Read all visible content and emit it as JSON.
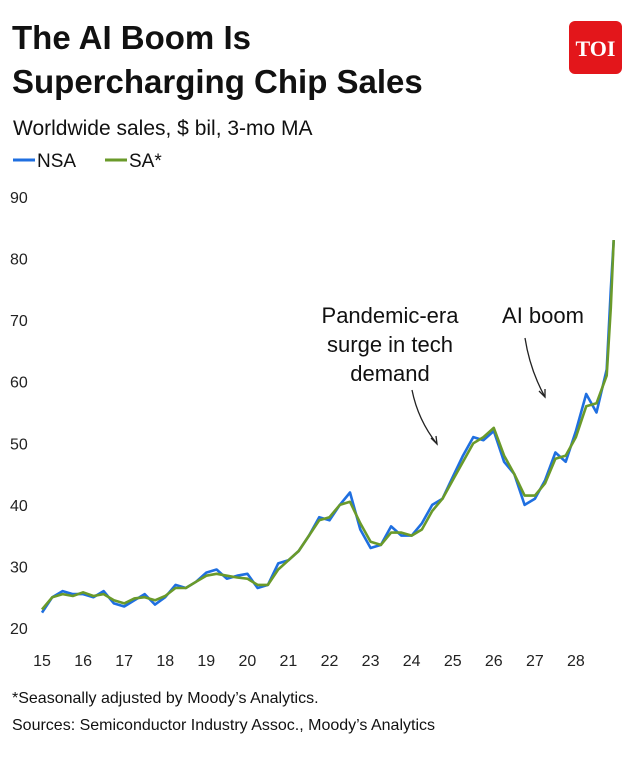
{
  "chart_data": {
    "type": "line",
    "logo": "TOI",
    "title": [
      "The AI Boom Is",
      "Supercharging Chip Sales"
    ],
    "subtitle": "Worldwide sales, $ bil, 3-mo MA",
    "x": [
      15,
      15.25,
      15.5,
      15.75,
      16,
      16.25,
      16.5,
      16.75,
      17,
      17.25,
      17.5,
      17.75,
      18,
      18.25,
      18.5,
      18.75,
      19,
      19.25,
      19.5,
      19.75,
      20,
      20.25,
      20.5,
      20.75,
      21,
      21.25,
      21.5,
      21.75,
      22,
      22.25,
      22.5,
      22.75,
      23,
      23.25,
      23.5,
      23.75,
      24,
      24.25,
      24.5,
      24.75,
      25,
      25.25,
      25.5,
      25.75,
      26,
      26.25,
      26.5,
      26.75,
      27,
      27.25,
      27.5,
      27.75,
      28,
      28.25,
      28.5,
      28.75,
      28.85,
      28.92
    ],
    "series": [
      {
        "name": "NSA",
        "color": "#1f6fe0",
        "values": [
          22.5,
          25,
          26,
          25.5,
          25.5,
          25,
          26,
          24,
          23.5,
          24.5,
          25.5,
          23.8,
          25,
          27,
          26.5,
          27.5,
          29,
          29.5,
          28,
          28.5,
          28.8,
          26.5,
          27,
          30.5,
          31,
          32.5,
          35,
          38,
          37.5,
          40,
          42,
          36,
          33,
          33.5,
          36.5,
          35,
          35,
          37,
          40,
          41,
          44.5,
          48,
          51,
          50.5,
          52,
          47,
          45,
          40,
          41,
          44,
          48.5,
          47,
          52,
          58,
          55,
          62,
          75,
          83
        ]
      },
      {
        "name": "SA*",
        "color": "#6a9a2a",
        "values": [
          23,
          25,
          25.5,
          25.2,
          25.8,
          25.2,
          25.5,
          24.5,
          24,
          24.8,
          25,
          24.5,
          25.2,
          26.5,
          26.5,
          27.5,
          28.5,
          28.8,
          28.5,
          28.2,
          28,
          27,
          27,
          29.5,
          31,
          32.5,
          35,
          37.5,
          38,
          40,
          40.5,
          37,
          34,
          33.5,
          35.5,
          35.5,
          35,
          36,
          39,
          41,
          44,
          47,
          50,
          51,
          52.5,
          48,
          45,
          41.5,
          41.5,
          43.5,
          47.5,
          48,
          51,
          56,
          56.5,
          61,
          72,
          83
        ]
      }
    ],
    "xlim": [
      14.6,
      29
    ],
    "xticks": [
      15,
      16,
      17,
      18,
      19,
      20,
      21,
      22,
      23,
      24,
      25,
      26,
      27,
      28
    ],
    "ylim": [
      20,
      90
    ],
    "yticks": [
      20,
      30,
      40,
      50,
      60,
      70,
      80,
      90
    ],
    "grid": false,
    "annotations": [
      {
        "lines": [
          "Pandemic-era",
          "surge in tech",
          "demand"
        ]
      },
      {
        "lines": [
          "AI boom"
        ]
      }
    ],
    "footnote": "*Seasonally adjusted by Moody’s Analytics.",
    "source": "Sources: Semiconductor Industry Assoc., Moody’s Analytics"
  }
}
